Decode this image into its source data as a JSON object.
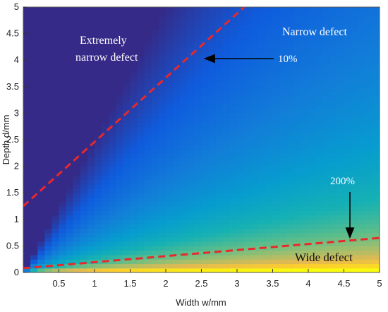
{
  "chart_data": {
    "type": "heatmap",
    "xlabel": "Width w/mm",
    "ylabel": "Depth d/mm",
    "xlim": [
      0,
      5
    ],
    "ylim": [
      0,
      5
    ],
    "x_ticks": [
      "0.5",
      "1",
      "1.5",
      "2",
      "2.5",
      "3",
      "3.5",
      "4",
      "4.5",
      "5"
    ],
    "y_ticks": [
      "0",
      "0.5",
      "1",
      "1.5",
      "2",
      "2.5",
      "3",
      "3.5",
      "4",
      "4.5",
      "5"
    ],
    "colormap": "parula",
    "lines": [
      {
        "label": "10%",
        "style": "dashed",
        "color": "#e8282b",
        "x": [
          0,
          3.1
        ],
        "y": [
          1.25,
          5.0
        ]
      },
      {
        "label": "200%",
        "style": "dashed",
        "color": "#e8282b",
        "x": [
          0,
          5.0
        ],
        "y": [
          0.08,
          0.65
        ]
      }
    ],
    "regions": [
      {
        "text_lines": [
          "Extremely",
          "narrow defect"
        ]
      },
      {
        "text_lines": [
          "Narrow defect"
        ]
      },
      {
        "text_lines": [
          "Wide defect"
        ]
      }
    ],
    "arrow_labels": [
      "10%",
      "200%"
    ]
  }
}
